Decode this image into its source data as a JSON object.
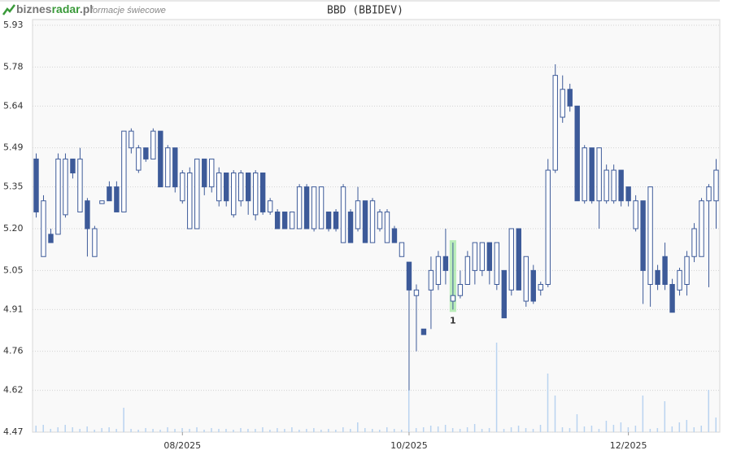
{
  "header": {
    "brand": [
      "biznes",
      "radar",
      ".pl"
    ],
    "subtitle": "formacje świecowe"
  },
  "chart_data": {
    "type": "candlestick",
    "title": "BBD (BBIDEV)",
    "color": "#3d5a99",
    "volume_color": "#b9d3f0",
    "marker_color": "#9fe79f",
    "grid": true,
    "ylim": [
      4.47,
      5.93
    ],
    "yticks": [
      4.47,
      4.62,
      4.76,
      4.91,
      5.05,
      {
        "value": 5.2,
        "label": "5.20"
      },
      5.35,
      5.49,
      5.64,
      5.78,
      5.93
    ],
    "categories": [
      null,
      null,
      null,
      null,
      null,
      null,
      null,
      null,
      null,
      null,
      null,
      null,
      null,
      null,
      null,
      null,
      null,
      null,
      null,
      null,
      "08/2025",
      null,
      null,
      null,
      null,
      null,
      null,
      null,
      null,
      null,
      null,
      null,
      null,
      null,
      null,
      null,
      null,
      null,
      null,
      null,
      null,
      null,
      null,
      null,
      null,
      null,
      null,
      null,
      null,
      null,
      null,
      "10/2025",
      null,
      null,
      null,
      null,
      null,
      null,
      null,
      null,
      null,
      null,
      null,
      null,
      null,
      null,
      null,
      null,
      null,
      null,
      null,
      null,
      null,
      null,
      null,
      null,
      null,
      null,
      null,
      null,
      null,
      "12/2025",
      null,
      null,
      null,
      null,
      null,
      null,
      null,
      null,
      null,
      null,
      null,
      null
    ],
    "open": [
      5.45,
      5.1,
      5.18,
      5.18,
      5.25,
      5.45,
      5.26,
      5.3,
      5.1,
      5.29,
      5.35,
      5.35,
      5.26,
      5.49,
      5.41,
      5.49,
      5.45,
      5.55,
      5.35,
      5.49,
      5.3,
      5.2,
      5.2,
      5.45,
      5.35,
      5.3,
      5.4,
      5.25,
      5.3,
      5.4,
      5.25,
      5.4,
      5.26,
      5.26,
      5.26,
      5.2,
      5.2,
      5.35,
      5.2,
      5.2,
      5.26,
      5.26,
      5.15,
      5.26,
      5.2,
      5.3,
      5.15,
      5.2,
      5.15,
      5.2,
      5.1,
      5.08,
      4.96,
      4.84,
      4.98,
      5.0,
      5.1,
      4.94,
      4.96,
      5.0,
      5.05,
      5.05,
      5.15,
      5.0,
      5.05,
      4.98,
      5.2,
      4.94,
      5.05,
      4.98,
      5.0,
      5.41,
      5.6,
      5.7,
      5.64,
      5.3,
      5.49,
      5.3,
      5.3,
      5.3,
      5.41,
      5.35,
      5.2,
      5.3,
      5.0,
      5.05,
      5.1,
      5.0,
      4.98,
      5.0,
      5.1,
      5.1,
      5.3,
      5.3
    ],
    "high": [
      5.47,
      5.32,
      5.2,
      5.47,
      5.47,
      5.45,
      5.49,
      5.31,
      5.21,
      5.3,
      5.37,
      5.37,
      5.55,
      5.56,
      5.5,
      5.49,
      5.56,
      5.55,
      5.5,
      5.49,
      5.41,
      5.42,
      5.45,
      5.45,
      5.45,
      5.42,
      5.4,
      5.41,
      5.41,
      5.4,
      5.41,
      5.4,
      5.31,
      5.27,
      5.26,
      5.26,
      5.36,
      5.36,
      5.35,
      5.35,
      5.26,
      5.27,
      5.36,
      5.27,
      5.35,
      5.3,
      5.31,
      5.27,
      5.27,
      5.21,
      5.15,
      5.08,
      5.0,
      4.84,
      5.1,
      5.12,
      5.2,
      5.15,
      5.05,
      5.12,
      5.15,
      5.15,
      5.15,
      5.15,
      5.05,
      5.2,
      5.2,
      5.1,
      5.07,
      5.01,
      5.45,
      5.79,
      5.75,
      5.72,
      5.64,
      5.5,
      5.49,
      5.49,
      5.43,
      5.43,
      5.41,
      5.35,
      5.32,
      5.3,
      5.35,
      5.07,
      5.15,
      5.02,
      5.06,
      5.12,
      5.22,
      5.31,
      5.36,
      5.45
    ],
    "low": [
      5.24,
      5.1,
      5.15,
      5.18,
      5.24,
      5.38,
      5.26,
      5.1,
      5.1,
      5.29,
      5.3,
      5.26,
      5.26,
      5.47,
      5.4,
      5.44,
      5.45,
      5.35,
      5.35,
      5.33,
      5.29,
      5.2,
      5.2,
      5.32,
      5.33,
      5.28,
      5.28,
      5.24,
      5.28,
      5.25,
      5.23,
      5.25,
      5.25,
      5.2,
      5.2,
      5.2,
      5.2,
      5.2,
      5.19,
      5.2,
      5.19,
      5.19,
      5.15,
      5.15,
      5.19,
      5.15,
      5.15,
      5.19,
      5.15,
      5.15,
      5.1,
      4.62,
      4.76,
      4.82,
      4.84,
      4.98,
      5.0,
      4.91,
      4.95,
      5.0,
      5.0,
      5.03,
      5.0,
      4.98,
      4.88,
      4.96,
      4.98,
      4.92,
      4.93,
      4.96,
      4.99,
      5.4,
      5.58,
      5.62,
      5.3,
      5.29,
      5.29,
      5.2,
      5.29,
      5.29,
      5.28,
      5.28,
      5.19,
      4.93,
      4.92,
      4.98,
      4.98,
      4.9,
      4.96,
      4.96,
      5.08,
      5.1,
      4.99,
      5.2
    ],
    "close": [
      5.26,
      5.3,
      5.15,
      5.45,
      5.45,
      5.4,
      5.45,
      5.2,
      5.2,
      5.3,
      5.3,
      5.26,
      5.55,
      5.55,
      5.49,
      5.45,
      5.55,
      5.35,
      5.49,
      5.35,
      5.4,
      5.4,
      5.45,
      5.35,
      5.45,
      5.4,
      5.3,
      5.4,
      5.4,
      5.3,
      5.4,
      5.26,
      5.3,
      5.2,
      5.2,
      5.26,
      5.35,
      5.2,
      5.35,
      5.35,
      5.2,
      5.2,
      5.35,
      5.15,
      5.3,
      5.15,
      5.3,
      5.26,
      5.26,
      5.15,
      5.15,
      4.98,
      4.98,
      4.82,
      5.05,
      5.1,
      5.05,
      4.96,
      5.0,
      5.1,
      5.15,
      5.15,
      5.05,
      5.15,
      4.88,
      5.2,
      4.98,
      5.1,
      4.94,
      5.0,
      5.41,
      5.75,
      5.7,
      5.64,
      5.3,
      5.49,
      5.3,
      5.49,
      5.41,
      5.41,
      5.3,
      5.3,
      5.3,
      5.05,
      5.35,
      5.0,
      5.0,
      4.9,
      5.05,
      5.1,
      5.2,
      5.3,
      5.35,
      5.41
    ],
    "volume": [
      8,
      9,
      4,
      6,
      9,
      6,
      4,
      7,
      3,
      5,
      6,
      4,
      30,
      4,
      3,
      5,
      4,
      3,
      6,
      4,
      5,
      4,
      6,
      3,
      5,
      4,
      4,
      3,
      5,
      4,
      4,
      6,
      3,
      5,
      4,
      6,
      3,
      4,
      5,
      3,
      4,
      3,
      6,
      4,
      12,
      5,
      4,
      3,
      6,
      4,
      3,
      52,
      5,
      6,
      8,
      7,
      9,
      5,
      4,
      6,
      10,
      4,
      5,
      110,
      4,
      6,
      8,
      5,
      4,
      9,
      72,
      45,
      6,
      5,
      22,
      7,
      8,
      4,
      14,
      9,
      12,
      6,
      8,
      45,
      4,
      5,
      38,
      7,
      12,
      15,
      6,
      8,
      52,
      18
    ],
    "markers": [
      {
        "index": 57,
        "label": "1"
      }
    ]
  }
}
